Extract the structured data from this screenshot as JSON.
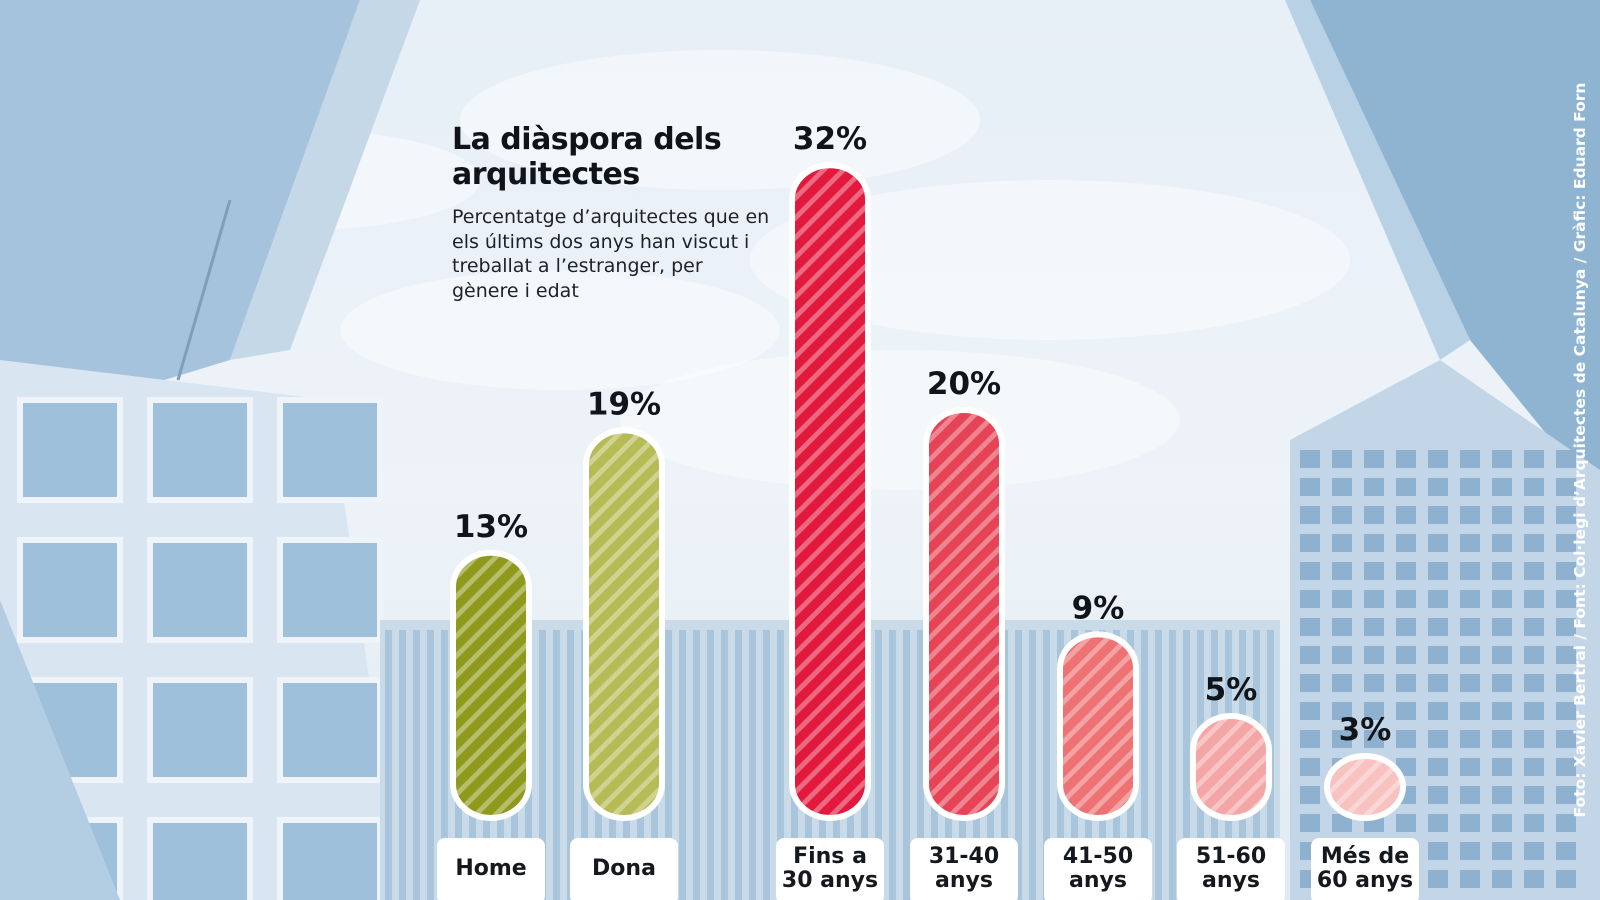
{
  "title": "La diàspora dels arquitectes",
  "subtitle": "Percentatge d’arquitectes que en els últims dos anys han viscut i treballat a l’estranger, per gènere i edat",
  "credit": "Foto: Xavier Bertral / Font: Col·legi d’Arquitectes de Catalunya / Gràfic: Eduard Forn",
  "chart_data": {
    "type": "bar",
    "title": "La diàspora dels arquitectes",
    "subtitle": "Percentatge d’arquitectes que en els últims dos anys han viscut i treballat a l’estranger, per gènere i edat",
    "categories": [
      [
        "Home"
      ],
      [
        "Dona"
      ],
      [
        "Fins a",
        "30 anys"
      ],
      [
        "31-40",
        "anys"
      ],
      [
        "41-50",
        "anys"
      ],
      [
        "51-60",
        "anys"
      ],
      [
        "Més de",
        "60 anys"
      ]
    ],
    "values": [
      13,
      19,
      32,
      20,
      9,
      5,
      3
    ],
    "value_labels": [
      "13%",
      "19%",
      "32%",
      "20%",
      "9%",
      "5%",
      "3%"
    ],
    "unit": "%",
    "colors": [
      "#8f9a1c",
      "#b7bb55",
      "#e2193c",
      "#e64456",
      "#ee7273",
      "#f4a6a6",
      "#f8c2c0"
    ],
    "background_photo": "modern office buildings against a cloudy sky, tinted blue",
    "grid": false,
    "legend": "none"
  }
}
